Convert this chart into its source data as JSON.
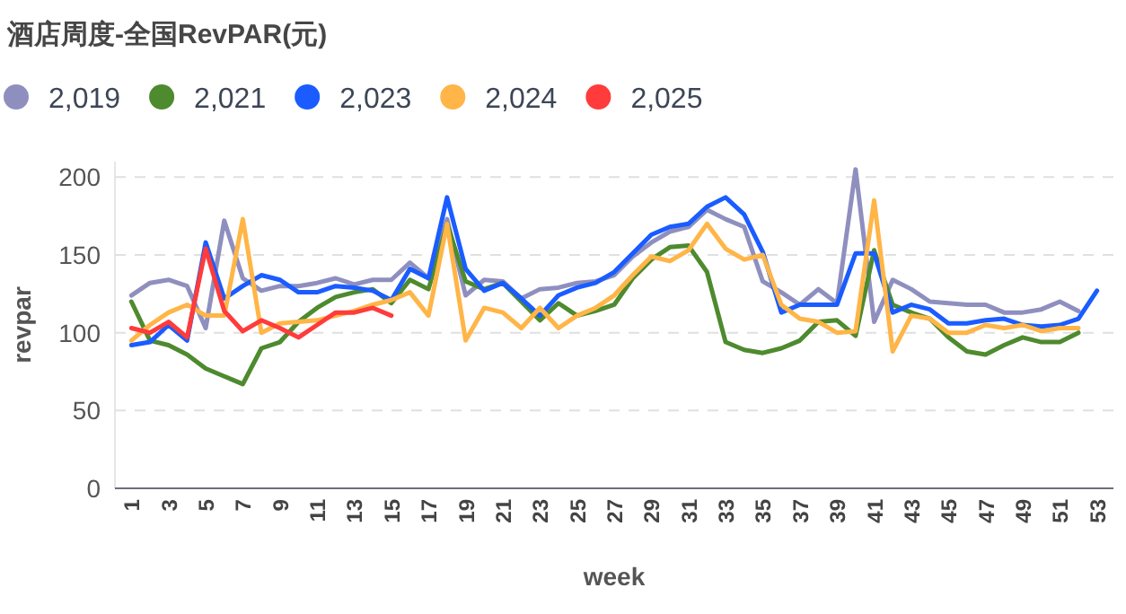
{
  "chart_data": {
    "type": "line",
    "title": "酒店周度-全国RevPAR(元)",
    "xlabel": "week",
    "ylabel": "revpar",
    "categories": [
      "1",
      null,
      "3",
      null,
      "5",
      null,
      "7",
      null,
      "9",
      null,
      "11",
      null,
      "13",
      null,
      "15",
      null,
      "17",
      null,
      "19",
      null,
      "21",
      null,
      "23",
      null,
      "25",
      null,
      "27",
      null,
      "29",
      null,
      "31",
      null,
      "33",
      null,
      "35",
      null,
      "37",
      null,
      "39",
      null,
      "41",
      null,
      "43",
      null,
      "45",
      null,
      "47",
      null,
      "49",
      null,
      "51",
      null,
      "53"
    ],
    "ylim": [
      0,
      210
    ],
    "yticks": [
      0,
      50,
      100,
      150,
      200
    ],
    "grid": "y",
    "legend": "top left",
    "marker": "none",
    "line_style": "solid",
    "series": [
      {
        "name": "2,019",
        "color": "#8f8fbf",
        "values": [
          124,
          132,
          134,
          130,
          103,
          172,
          135,
          127,
          130,
          130,
          132,
          135,
          131,
          134,
          134,
          145,
          135,
          173,
          124,
          134,
          133,
          122,
          128,
          129,
          132,
          133,
          137,
          149,
          158,
          165,
          168,
          179,
          173,
          168,
          133,
          126,
          118,
          128,
          119,
          205,
          107,
          134,
          128,
          120,
          119,
          118,
          118,
          113,
          113,
          115,
          120,
          114,
          null
        ]
      },
      {
        "name": "2,021",
        "color": "#4e8a2e",
        "values": [
          120,
          95,
          92,
          86,
          77,
          72,
          67,
          90,
          94,
          107,
          116,
          123,
          126,
          128,
          119,
          134,
          128,
          170,
          133,
          128,
          132,
          120,
          108,
          119,
          111,
          114,
          118,
          135,
          147,
          155,
          156,
          139,
          94,
          89,
          87,
          90,
          95,
          107,
          108,
          98,
          153,
          118,
          113,
          109,
          97,
          88,
          86,
          92,
          97,
          94,
          94,
          100,
          null
        ]
      },
      {
        "name": "2,023",
        "color": "#1a5cff",
        "values": [
          92,
          94,
          105,
          95,
          158,
          122,
          130,
          137,
          134,
          126,
          126,
          130,
          129,
          127,
          121,
          141,
          135,
          187,
          141,
          127,
          132,
          122,
          111,
          124,
          129,
          132,
          139,
          151,
          163,
          168,
          170,
          181,
          187,
          176,
          152,
          113,
          118,
          118,
          118,
          151,
          151,
          113,
          118,
          115,
          106,
          106,
          108,
          109,
          105,
          104,
          105,
          109,
          127
        ]
      },
      {
        "name": "2,024",
        "color": "#ffb547",
        "values": [
          95,
          105,
          113,
          118,
          111,
          111,
          173,
          100,
          106,
          107,
          108,
          111,
          114,
          118,
          121,
          126,
          111,
          170,
          95,
          116,
          113,
          103,
          116,
          103,
          111,
          116,
          124,
          137,
          149,
          146,
          153,
          170,
          154,
          147,
          150,
          118,
          109,
          107,
          100,
          101,
          185,
          88,
          111,
          109,
          100,
          100,
          105,
          103,
          105,
          101,
          103,
          103,
          null
        ]
      },
      {
        "name": "2,025",
        "color": "#ff3b3b",
        "values": [
          103,
          100,
          107,
          97,
          154,
          114,
          101,
          108,
          103,
          97,
          105,
          113,
          113,
          116,
          111,
          null,
          null,
          null,
          null,
          null,
          null,
          null,
          null,
          null,
          null,
          null,
          null,
          null,
          null,
          null,
          null,
          null,
          null,
          null,
          null,
          null,
          null,
          null,
          null,
          null,
          null,
          null,
          null,
          null,
          null,
          null,
          null,
          null,
          null,
          null,
          null,
          null,
          null
        ]
      }
    ]
  }
}
